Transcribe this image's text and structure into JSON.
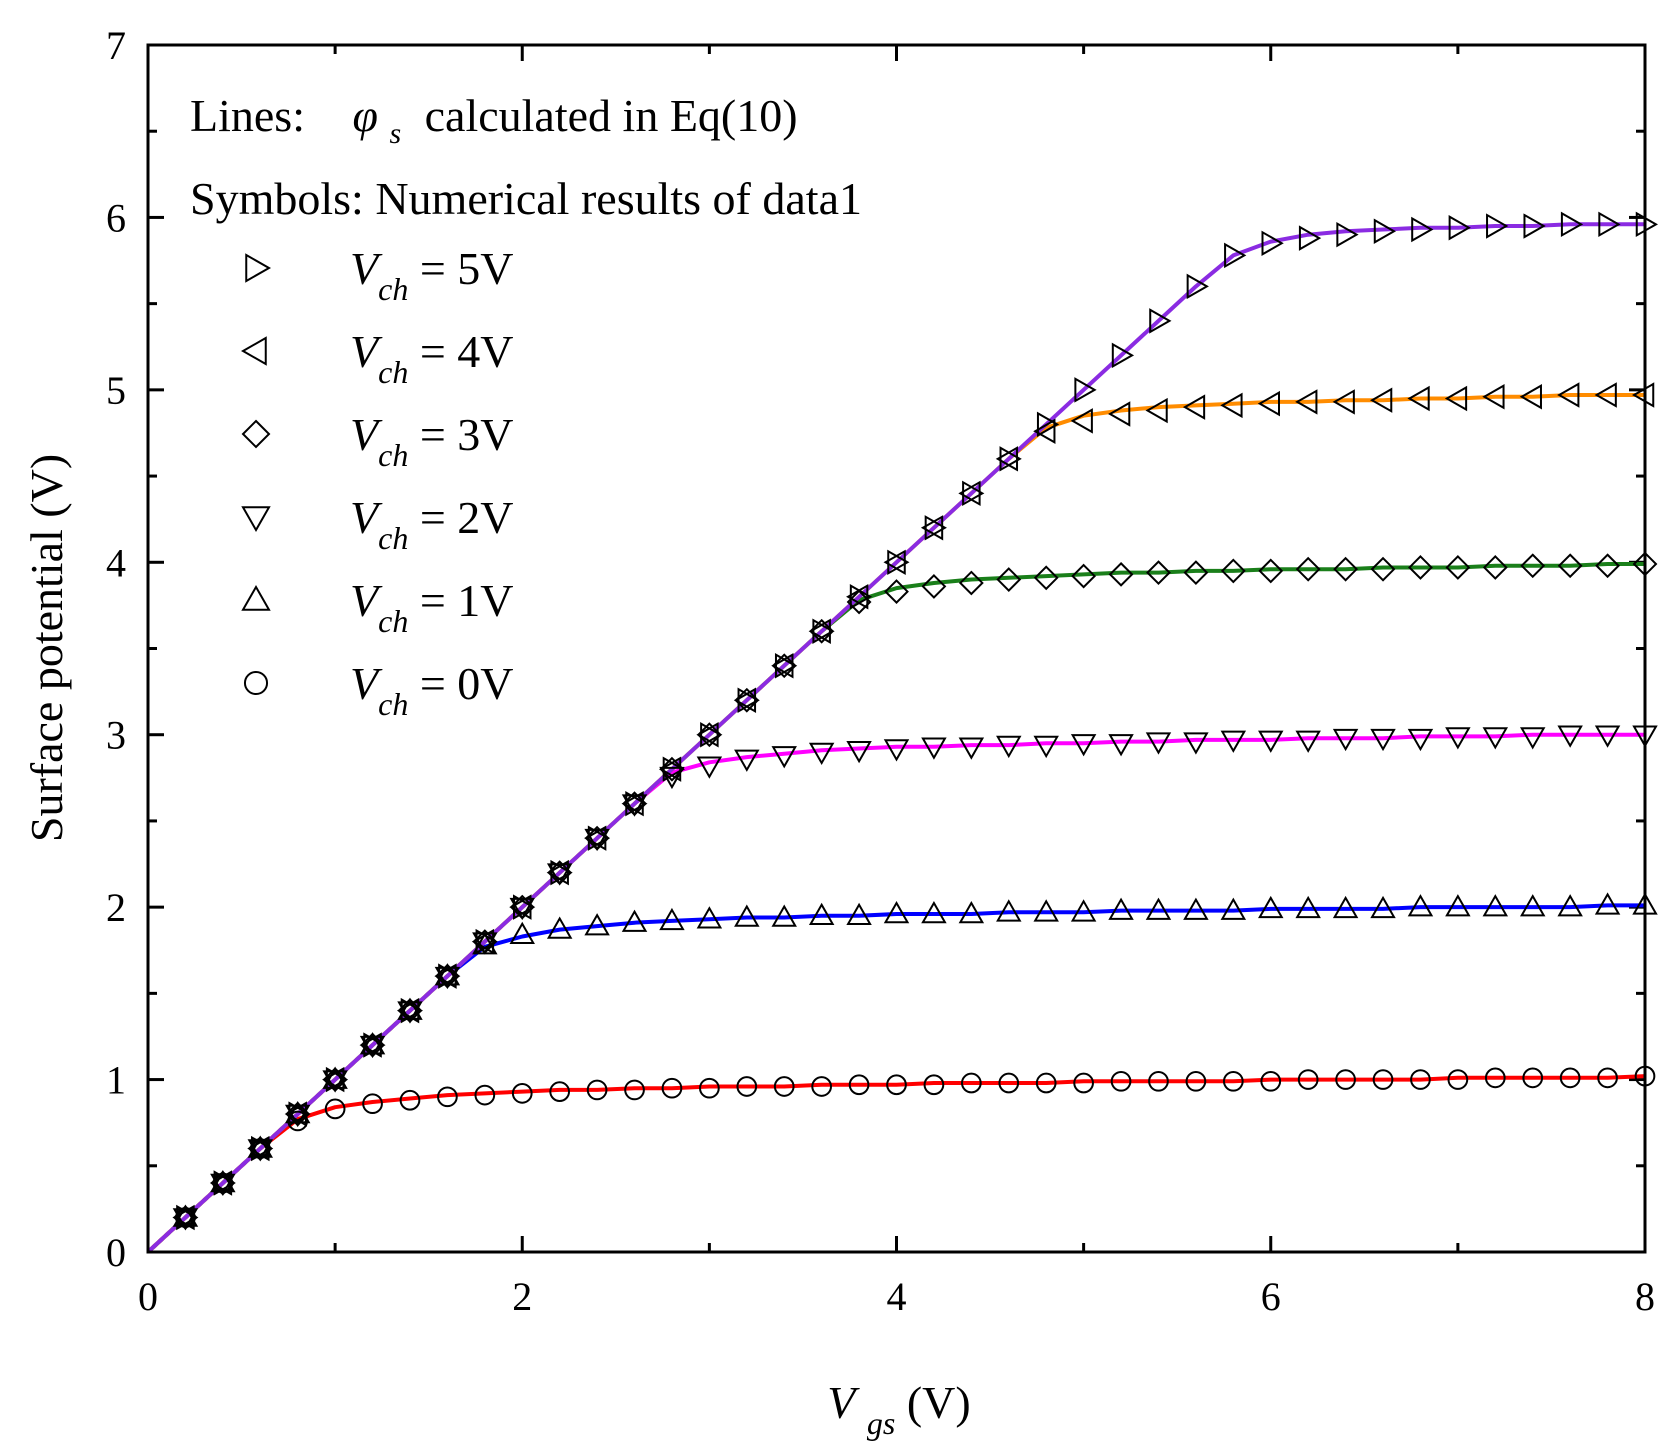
{
  "chart_data": {
    "type": "line",
    "title": "",
    "xlabel": {
      "main": "V",
      "sub": "gs",
      "unit": " (V)"
    },
    "ylabel": "Surface potential (V)",
    "xlim": [
      0,
      8
    ],
    "ylim": [
      0,
      7
    ],
    "xticks": [
      0,
      2,
      4,
      6,
      8
    ],
    "yticks": [
      0,
      1,
      2,
      3,
      4,
      5,
      6,
      7
    ],
    "annotations": {
      "lines_prefix": "Lines:",
      "lines_symbol": "φ",
      "lines_symbol_sub": "s",
      "lines_suffix": "calculated in Eq(10)",
      "symbols": "Symbols: Numerical results of data1"
    },
    "legend_position": "top-left",
    "series": [
      {
        "name": "V_ch = 5V",
        "label_main": "V",
        "label_sub": "ch",
        "label_value": " = 5V",
        "vch": 5,
        "color": "#8a2be2",
        "marker": "triangle-right"
      },
      {
        "name": "V_ch = 4V",
        "label_main": "V",
        "label_sub": "ch",
        "label_value": " = 4V",
        "vch": 4,
        "color": "#ff8c00",
        "marker": "triangle-left"
      },
      {
        "name": "V_ch = 3V",
        "label_main": "V",
        "label_sub": "ch",
        "label_value": " = 3V",
        "vch": 3,
        "color": "#1a7f1a",
        "marker": "diamond"
      },
      {
        "name": "V_ch = 2V",
        "label_main": "V",
        "label_sub": "ch",
        "label_value": " = 2V",
        "vch": 2,
        "color": "#ff00ff",
        "marker": "triangle-down"
      },
      {
        "name": "V_ch = 1V",
        "label_main": "V",
        "label_sub": "ch",
        "label_value": " = 1V",
        "vch": 1,
        "color": "#0000ff",
        "marker": "triangle-up"
      },
      {
        "name": "V_ch = 0V",
        "label_main": "V",
        "label_sub": "ch",
        "label_value": " = 0V",
        "vch": 0,
        "color": "#ff0000",
        "marker": "circle"
      }
    ],
    "line_vgs": [
      0,
      0.2,
      0.4,
      0.6,
      0.8,
      1.0,
      1.2,
      1.4,
      1.6,
      1.8,
      2.0,
      2.2,
      2.4,
      2.6,
      2.8,
      3.0,
      3.2,
      3.4,
      3.6,
      3.8,
      4.0,
      4.2,
      4.4,
      4.6,
      4.8,
      5.0,
      5.2,
      5.4,
      5.6,
      5.8,
      6.0,
      6.2,
      6.4,
      6.6,
      6.8,
      7.0,
      7.2,
      7.4,
      7.6,
      7.8,
      8.0
    ],
    "marker_vgs": [
      0.2,
      0.4,
      0.6,
      0.8,
      1.0,
      1.2,
      1.4,
      1.6,
      1.8,
      2.0,
      2.2,
      2.4,
      2.6,
      2.8,
      3.0,
      3.2,
      3.4,
      3.6,
      3.8,
      4.0,
      4.2,
      4.4,
      4.6,
      4.8,
      5.0,
      5.2,
      5.4,
      5.6,
      5.8,
      6.0,
      6.2,
      6.4,
      6.6,
      6.8,
      7.0,
      7.2,
      7.4,
      7.6,
      7.8,
      8.0
    ],
    "line_values": {
      "5": [
        0,
        0.2,
        0.4,
        0.6,
        0.8,
        1.0,
        1.2,
        1.4,
        1.6,
        1.8,
        2.0,
        2.2,
        2.4,
        2.6,
        2.8,
        3.0,
        3.2,
        3.4,
        3.6,
        3.8,
        4.0,
        4.2,
        4.4,
        4.6,
        4.8,
        5.0,
        5.2,
        5.4,
        5.6,
        5.78,
        5.86,
        5.9,
        5.92,
        5.93,
        5.94,
        5.94,
        5.95,
        5.95,
        5.96,
        5.96,
        5.96
      ],
      "4": [
        0,
        0.2,
        0.4,
        0.6,
        0.8,
        1.0,
        1.2,
        1.4,
        1.6,
        1.8,
        2.0,
        2.2,
        2.4,
        2.6,
        2.8,
        3.0,
        3.2,
        3.4,
        3.6,
        3.8,
        4.0,
        4.2,
        4.4,
        4.6,
        4.78,
        4.85,
        4.88,
        4.9,
        4.91,
        4.92,
        4.93,
        4.93,
        4.94,
        4.94,
        4.95,
        4.95,
        4.96,
        4.96,
        4.97,
        4.97,
        4.97
      ],
      "3": [
        0,
        0.2,
        0.4,
        0.6,
        0.8,
        1.0,
        1.2,
        1.4,
        1.6,
        1.8,
        2.0,
        2.2,
        2.4,
        2.6,
        2.8,
        3.0,
        3.2,
        3.4,
        3.6,
        3.78,
        3.85,
        3.88,
        3.9,
        3.91,
        3.92,
        3.93,
        3.94,
        3.94,
        3.95,
        3.95,
        3.96,
        3.96,
        3.96,
        3.97,
        3.97,
        3.97,
        3.98,
        3.98,
        3.98,
        3.99,
        3.99
      ],
      "2": [
        0,
        0.2,
        0.4,
        0.6,
        0.8,
        1.0,
        1.2,
        1.4,
        1.6,
        1.8,
        2.0,
        2.2,
        2.4,
        2.6,
        2.78,
        2.84,
        2.87,
        2.89,
        2.91,
        2.92,
        2.93,
        2.93,
        2.94,
        2.94,
        2.95,
        2.95,
        2.96,
        2.96,
        2.97,
        2.97,
        2.97,
        2.98,
        2.98,
        2.98,
        2.99,
        2.99,
        2.99,
        3.0,
        3.0,
        3.0,
        3.0
      ],
      "1": [
        0,
        0.2,
        0.4,
        0.6,
        0.8,
        1.0,
        1.2,
        1.4,
        1.6,
        1.77,
        1.83,
        1.87,
        1.89,
        1.91,
        1.92,
        1.93,
        1.94,
        1.94,
        1.95,
        1.95,
        1.96,
        1.96,
        1.96,
        1.97,
        1.97,
        1.97,
        1.98,
        1.98,
        1.98,
        1.98,
        1.99,
        1.99,
        1.99,
        1.99,
        2.0,
        2.0,
        2.0,
        2.0,
        2.0,
        2.01,
        2.01
      ],
      "0": [
        0,
        0.2,
        0.4,
        0.6,
        0.77,
        0.84,
        0.87,
        0.89,
        0.91,
        0.92,
        0.93,
        0.94,
        0.94,
        0.95,
        0.95,
        0.96,
        0.96,
        0.96,
        0.97,
        0.97,
        0.97,
        0.98,
        0.98,
        0.98,
        0.98,
        0.99,
        0.99,
        0.99,
        0.99,
        0.99,
        1.0,
        1.0,
        1.0,
        1.0,
        1.0,
        1.01,
        1.01,
        1.01,
        1.01,
        1.01,
        1.02
      ]
    },
    "marker_values": {
      "5": [
        0.2,
        0.4,
        0.6,
        0.8,
        1.0,
        1.2,
        1.4,
        1.6,
        1.8,
        2.0,
        2.2,
        2.4,
        2.6,
        2.8,
        3.0,
        3.2,
        3.4,
        3.6,
        3.8,
        4.0,
        4.2,
        4.4,
        4.6,
        4.8,
        5.0,
        5.2,
        5.4,
        5.6,
        5.78,
        5.85,
        5.88,
        5.9,
        5.92,
        5.93,
        5.94,
        5.95,
        5.95,
        5.96,
        5.96,
        5.96
      ],
      "4": [
        0.2,
        0.4,
        0.6,
        0.8,
        1.0,
        1.2,
        1.4,
        1.6,
        1.8,
        2.0,
        2.2,
        2.4,
        2.6,
        2.8,
        3.0,
        3.2,
        3.4,
        3.6,
        3.8,
        4.0,
        4.2,
        4.4,
        4.6,
        4.76,
        4.82,
        4.86,
        4.88,
        4.9,
        4.91,
        4.92,
        4.93,
        4.93,
        4.94,
        4.95,
        4.95,
        4.96,
        4.96,
        4.97,
        4.97,
        4.97
      ],
      "3": [
        0.2,
        0.4,
        0.6,
        0.8,
        1.0,
        1.2,
        1.4,
        1.6,
        1.8,
        2.0,
        2.2,
        2.4,
        2.6,
        2.8,
        3.0,
        3.2,
        3.4,
        3.6,
        3.77,
        3.83,
        3.86,
        3.88,
        3.9,
        3.91,
        3.92,
        3.93,
        3.94,
        3.94,
        3.95,
        3.95,
        3.96,
        3.96,
        3.96,
        3.97,
        3.97,
        3.97,
        3.98,
        3.98,
        3.98,
        3.99
      ],
      "2": [
        0.2,
        0.4,
        0.6,
        0.8,
        1.0,
        1.2,
        1.4,
        1.6,
        1.8,
        2.0,
        2.2,
        2.4,
        2.6,
        2.76,
        2.82,
        2.86,
        2.88,
        2.9,
        2.91,
        2.92,
        2.93,
        2.93,
        2.94,
        2.94,
        2.95,
        2.95,
        2.96,
        2.96,
        2.97,
        2.97,
        2.97,
        2.98,
        2.98,
        2.98,
        2.99,
        2.99,
        2.99,
        3.0,
        3.0,
        3.0
      ],
      "1": [
        0.2,
        0.4,
        0.6,
        0.8,
        1.0,
        1.2,
        1.4,
        1.6,
        1.78,
        1.84,
        1.87,
        1.89,
        1.91,
        1.92,
        1.93,
        1.94,
        1.94,
        1.95,
        1.95,
        1.96,
        1.96,
        1.96,
        1.97,
        1.97,
        1.97,
        1.98,
        1.98,
        1.98,
        1.98,
        1.99,
        1.99,
        1.99,
        1.99,
        2.0,
        2.0,
        2.0,
        2.0,
        2.0,
        2.01,
        2.01
      ],
      "0": [
        0.2,
        0.4,
        0.6,
        0.76,
        0.83,
        0.86,
        0.88,
        0.9,
        0.91,
        0.92,
        0.93,
        0.94,
        0.94,
        0.95,
        0.95,
        0.96,
        0.96,
        0.96,
        0.97,
        0.97,
        0.97,
        0.98,
        0.98,
        0.98,
        0.98,
        0.99,
        0.99,
        0.99,
        0.99,
        0.99,
        1.0,
        1.0,
        1.0,
        1.0,
        1.0,
        1.01,
        1.01,
        1.01,
        1.01,
        1.02
      ]
    }
  }
}
